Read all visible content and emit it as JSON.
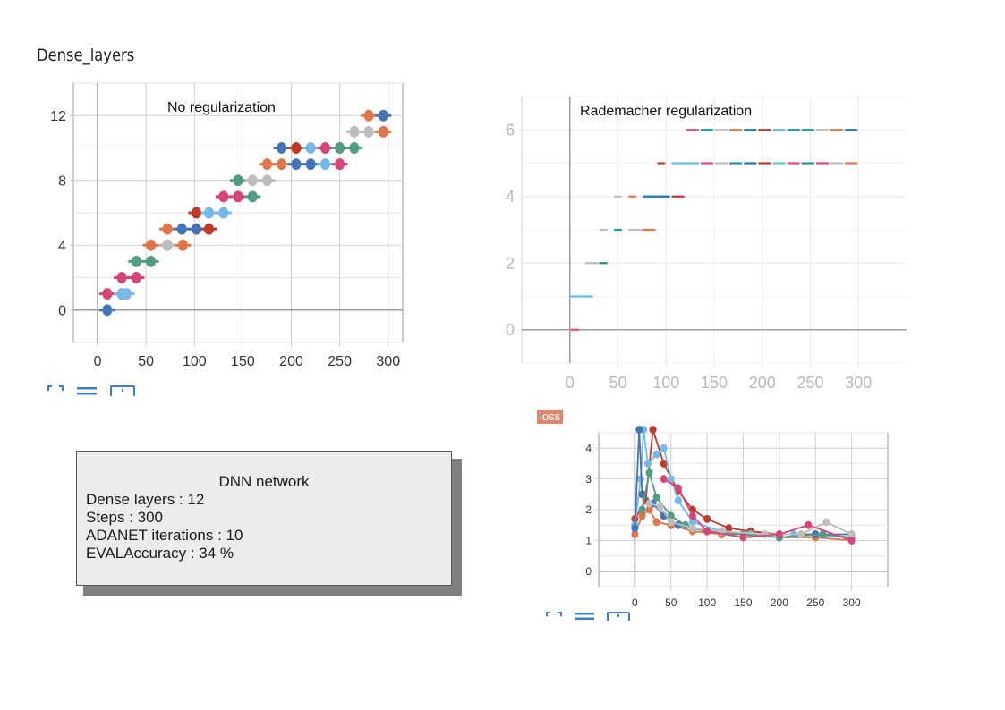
{
  "page": {
    "heading": "Dense_layers",
    "info_box": {
      "title": "DNN network",
      "lines": [
        "Dense layers : 12",
        "Steps : 300",
        "ADANET iterations : 10",
        "EVALAccuracy : 34 %"
      ]
    },
    "loss_tag": "loss"
  },
  "chart_data": [
    {
      "type": "line",
      "title": "No regularization",
      "xlabel": "",
      "ylabel": "",
      "xlim": [
        -25,
        315
      ],
      "ylim": [
        -2,
        14
      ],
      "x_ticks": [
        0,
        50,
        100,
        150,
        200,
        250,
        300
      ],
      "y_ticks": [
        0,
        4,
        8,
        12
      ],
      "grid": true,
      "series": [
        {
          "color": "#4575b4",
          "points": [
            [
              10,
              0
            ]
          ]
        },
        {
          "color": "#d6457a",
          "points": [
            [
              10,
              1
            ],
            [
              25,
              1
            ]
          ]
        },
        {
          "color": "#74b9e8",
          "points": [
            [
              25,
              1
            ],
            [
              30,
              1
            ]
          ]
        },
        {
          "color": "#d6457a",
          "points": [
            [
              25,
              2
            ],
            [
              40,
              2
            ]
          ]
        },
        {
          "color": "#529b84",
          "points": [
            [
              40,
              3
            ],
            [
              55,
              3
            ]
          ]
        },
        {
          "color": "#e0744a",
          "points": [
            [
              55,
              4
            ],
            [
              72,
              4
            ],
            [
              88,
              4
            ]
          ]
        },
        {
          "color": "#bdbdbd",
          "points": [
            [
              72,
              4
            ]
          ]
        },
        {
          "color": "#e0744a",
          "points": [
            [
              72,
              5
            ]
          ]
        },
        {
          "color": "#4575b4",
          "points": [
            [
              87,
              5
            ],
            [
              102,
              5
            ]
          ]
        },
        {
          "color": "#c0392b",
          "points": [
            [
              115,
              5
            ],
            [
              102,
              6
            ]
          ]
        },
        {
          "color": "#74b9e8",
          "points": [
            [
              115,
              6
            ],
            [
              130,
              6
            ]
          ]
        },
        {
          "color": "#d6457a",
          "points": [
            [
              130,
              7
            ],
            [
              145,
              7
            ]
          ]
        },
        {
          "color": "#529b84",
          "points": [
            [
              160,
              7
            ],
            [
              145,
              8
            ]
          ]
        },
        {
          "color": "#bdbdbd",
          "points": [
            [
              160,
              8
            ],
            [
              175,
              8
            ]
          ]
        },
        {
          "color": "#e0744a",
          "points": [
            [
              175,
              9
            ],
            [
              190,
              9
            ]
          ]
        },
        {
          "color": "#4575b4",
          "points": [
            [
              205,
              9
            ],
            [
              220,
              9
            ]
          ]
        },
        {
          "color": "#74b9e8",
          "points": [
            [
              235,
              9
            ]
          ]
        },
        {
          "color": "#d6457a",
          "points": [
            [
              250,
              9
            ]
          ]
        },
        {
          "color": "#4575b4",
          "points": [
            [
              190,
              10
            ]
          ]
        },
        {
          "color": "#c0392b",
          "points": [
            [
              205,
              10
            ]
          ]
        },
        {
          "color": "#74b9e8",
          "points": [
            [
              220,
              10
            ]
          ]
        },
        {
          "color": "#d6457a",
          "points": [
            [
              235,
              10
            ]
          ]
        },
        {
          "color": "#529b84",
          "points": [
            [
              250,
              10
            ],
            [
              265,
              10
            ]
          ]
        },
        {
          "color": "#bdbdbd",
          "points": [
            [
              265,
              11
            ],
            [
              280,
              11
            ]
          ]
        },
        {
          "color": "#e0744a",
          "points": [
            [
              295,
              11
            ],
            [
              280,
              12
            ]
          ]
        },
        {
          "color": "#4575b4",
          "points": [
            [
              295,
              12
            ]
          ]
        }
      ]
    },
    {
      "type": "line",
      "title": "Rademacher regularization",
      "xlabel": "",
      "ylabel": "",
      "xlim": [
        -50,
        350
      ],
      "ylim": [
        -1,
        7
      ],
      "x_ticks": [
        0,
        50,
        100,
        150,
        200,
        250,
        300
      ],
      "y_ticks": [
        0,
        2,
        4,
        6
      ],
      "grid": true,
      "segments": [
        {
          "y": 0,
          "x0": 0,
          "x1": 10,
          "color": "#e8467c"
        },
        {
          "y": 1,
          "x0": 0,
          "x1": 25,
          "color": "#5bc0eb"
        },
        {
          "y": 2,
          "x0": 15,
          "x1": 40,
          "color": "#bdbdbd"
        },
        {
          "y": 2,
          "x0": 30,
          "x1": 40,
          "color": "#1a9c8e"
        },
        {
          "y": 3,
          "x0": 30,
          "x1": 40,
          "color": "#bdbdbd"
        },
        {
          "y": 3,
          "x0": 45,
          "x1": 55,
          "color": "#1a9c8e"
        },
        {
          "y": 3,
          "x0": 60,
          "x1": 90,
          "color": "#bdbdbd"
        },
        {
          "y": 3,
          "x0": 75,
          "x1": 90,
          "color": "#e0744a"
        },
        {
          "y": 4,
          "x0": 45,
          "x1": 55,
          "color": "#bdbdbd"
        },
        {
          "y": 4,
          "x0": 60,
          "x1": 70,
          "color": "#e0744a"
        },
        {
          "y": 4,
          "x0": 75,
          "x1": 105,
          "color": "#1b75bb"
        },
        {
          "y": 4,
          "x0": 105,
          "x1": 120,
          "color": "#c0392b"
        },
        {
          "y": 5,
          "x0": 90,
          "x1": 100,
          "color": "#c0392b"
        },
        {
          "y": 5,
          "x0": 105,
          "x1": 135,
          "color": "#5bc0eb"
        },
        {
          "y": 5,
          "x0": 135,
          "x1": 150,
          "color": "#e8467c"
        },
        {
          "y": 5,
          "x0": 150,
          "x1": 165,
          "color": "#bdbdbd"
        },
        {
          "y": 5,
          "x0": 165,
          "x1": 180,
          "color": "#1a9c8e"
        },
        {
          "y": 5,
          "x0": 180,
          "x1": 195,
          "color": "#1b75bb"
        },
        {
          "y": 5,
          "x0": 195,
          "x1": 210,
          "color": "#c0392b"
        },
        {
          "y": 5,
          "x0": 210,
          "x1": 225,
          "color": "#5bc0eb"
        },
        {
          "y": 5,
          "x0": 225,
          "x1": 240,
          "color": "#e8467c"
        },
        {
          "y": 5,
          "x0": 240,
          "x1": 255,
          "color": "#1a9c8e"
        },
        {
          "y": 5,
          "x0": 255,
          "x1": 270,
          "color": "#e8467c"
        },
        {
          "y": 5,
          "x0": 270,
          "x1": 285,
          "color": "#bdbdbd"
        },
        {
          "y": 5,
          "x0": 285,
          "x1": 300,
          "color": "#e0744a"
        },
        {
          "y": 6,
          "x0": 120,
          "x1": 135,
          "color": "#e8467c"
        },
        {
          "y": 6,
          "x0": 135,
          "x1": 150,
          "color": "#1a9c8e"
        },
        {
          "y": 6,
          "x0": 150,
          "x1": 165,
          "color": "#bdbdbd"
        },
        {
          "y": 6,
          "x0": 165,
          "x1": 180,
          "color": "#e0744a"
        },
        {
          "y": 6,
          "x0": 180,
          "x1": 195,
          "color": "#1b75bb"
        },
        {
          "y": 6,
          "x0": 195,
          "x1": 210,
          "color": "#c0392b"
        },
        {
          "y": 6,
          "x0": 210,
          "x1": 225,
          "color": "#5bc0eb"
        },
        {
          "y": 6,
          "x0": 225,
          "x1": 240,
          "color": "#1a9c8e"
        },
        {
          "y": 6,
          "x0": 240,
          "x1": 255,
          "color": "#1a9c8e"
        },
        {
          "y": 6,
          "x0": 255,
          "x1": 270,
          "color": "#bdbdbd"
        },
        {
          "y": 6,
          "x0": 270,
          "x1": 285,
          "color": "#e0744a"
        },
        {
          "y": 6,
          "x0": 285,
          "x1": 300,
          "color": "#1b75bb"
        }
      ]
    },
    {
      "type": "line",
      "title": "loss",
      "xlabel": "",
      "ylabel": "",
      "xlim": [
        -50,
        350
      ],
      "ylim": [
        -0.5,
        4.5
      ],
      "x_ticks": [
        0,
        50,
        100,
        150,
        200,
        250,
        300
      ],
      "y_ticks": [
        0,
        1,
        2,
        3,
        4
      ],
      "grid": true,
      "series": [
        {
          "color": "#bf3b2b",
          "points": [
            [
              0,
              1.7
            ],
            [
              15,
              2.3
            ],
            [
              25,
              4.6
            ],
            [
              40,
              3.5
            ],
            [
              60,
              2.6
            ],
            [
              80,
              2.0
            ],
            [
              100,
              1.7
            ],
            [
              130,
              1.4
            ],
            [
              160,
              1.3
            ],
            [
              200,
              1.2
            ],
            [
              250,
              1.2
            ],
            [
              300,
              1.1
            ]
          ]
        },
        {
          "color": "#e0744a",
          "points": [
            [
              0,
              1.2
            ],
            [
              10,
              1.8
            ],
            [
              20,
              2.0
            ],
            [
              30,
              1.6
            ],
            [
              50,
              1.5
            ],
            [
              80,
              1.3
            ],
            [
              120,
              1.2
            ],
            [
              160,
              1.2
            ],
            [
              200,
              1.1
            ],
            [
              250,
              1.1
            ],
            [
              300,
              1.0
            ]
          ]
        },
        {
          "color": "#74b9e8",
          "points": [
            [
              0,
              1.5
            ],
            [
              8,
              3.0
            ],
            [
              12,
              4.6
            ],
            [
              18,
              3.5
            ],
            [
              30,
              3.8
            ],
            [
              40,
              4.0
            ],
            [
              50,
              3.0
            ],
            [
              60,
              2.3
            ],
            [
              80,
              1.6
            ],
            [
              120,
              1.3
            ],
            [
              160,
              1.2
            ],
            [
              220,
              1.2
            ],
            [
              300,
              1.1
            ]
          ]
        },
        {
          "color": "#4575b4",
          "points": [
            [
              0,
              1.4
            ],
            [
              6,
              4.6
            ],
            [
              10,
              2.5
            ],
            [
              25,
              2.2
            ],
            [
              40,
              1.8
            ],
            [
              60,
              1.5
            ],
            [
              100,
              1.3
            ],
            [
              150,
              1.2
            ],
            [
              200,
              1.1
            ],
            [
              250,
              1.2
            ],
            [
              300,
              1.2
            ]
          ]
        },
        {
          "color": "#529b84",
          "points": [
            [
              10,
              2.0
            ],
            [
              20,
              3.2
            ],
            [
              30,
              2.4
            ],
            [
              50,
              1.8
            ],
            [
              70,
              1.5
            ],
            [
              100,
              1.3
            ],
            [
              150,
              1.2
            ],
            [
              200,
              1.1
            ],
            [
              260,
              1.2
            ],
            [
              300,
              1.1
            ]
          ]
        },
        {
          "color": "#bdbdbd",
          "points": [
            [
              20,
              2.2
            ],
            [
              35,
              2.1
            ],
            [
              50,
              1.6
            ],
            [
              80,
              1.4
            ],
            [
              120,
              1.3
            ],
            [
              180,
              1.2
            ],
            [
              230,
              1.2
            ],
            [
              265,
              1.6
            ],
            [
              300,
              1.2
            ]
          ]
        },
        {
          "color": "#d6457a",
          "points": [
            [
              40,
              3.0
            ],
            [
              60,
              2.7
            ],
            [
              80,
              1.8
            ],
            [
              100,
              1.3
            ],
            [
              150,
              1.1
            ],
            [
              200,
              1.2
            ],
            [
              240,
              1.5
            ],
            [
              300,
              1.0
            ]
          ]
        }
      ]
    }
  ]
}
